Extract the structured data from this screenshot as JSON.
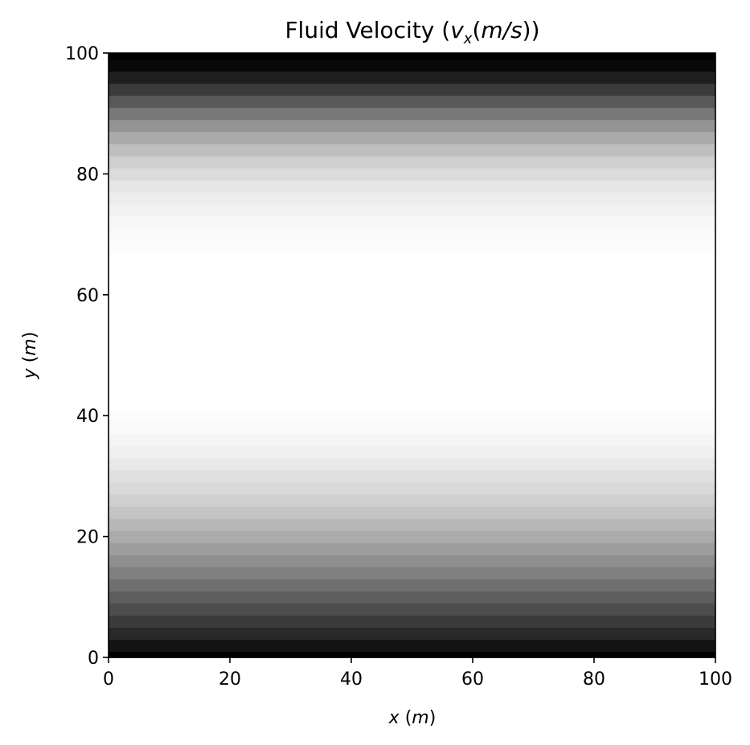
{
  "chart_data": {
    "type": "heatmap",
    "title": {
      "prefix": "Fluid Velocity (",
      "var": "v",
      "sub": "x",
      "open": "(",
      "unit": "m/s",
      "close": "))"
    },
    "xlabel": {
      "var": "x",
      "open": " (",
      "unit": "m",
      "close": ")"
    },
    "ylabel": {
      "var": "y",
      "open": " (",
      "unit": "m",
      "close": ")"
    },
    "xlim": [
      0,
      100
    ],
    "ylim": [
      0,
      100
    ],
    "xticks": [
      "0",
      "20",
      "40",
      "60",
      "80",
      "100"
    ],
    "yticks": [
      "0",
      "20",
      "40",
      "60",
      "80",
      "100"
    ],
    "colormap": "gray_r",
    "grid": false,
    "colors": {
      "min_value": "#ffffff",
      "max_value": "#000000"
    },
    "y_bands": [
      0,
      2,
      4,
      6,
      8,
      10,
      12,
      14,
      16,
      18,
      20,
      22,
      24,
      26,
      28,
      30,
      32,
      34,
      36,
      38,
      40,
      42,
      44,
      46,
      48,
      50,
      52,
      54,
      56,
      58,
      60,
      62,
      64,
      66,
      68,
      70,
      72,
      74,
      76,
      78,
      80,
      82,
      84,
      86,
      88,
      90,
      92,
      94,
      96,
      98,
      100
    ],
    "band_intensity": [
      1.0,
      0.92,
      0.84,
      0.77,
      0.7,
      0.63,
      0.56,
      0.5,
      0.44,
      0.38,
      0.33,
      0.28,
      0.23,
      0.19,
      0.15,
      0.12,
      0.09,
      0.06,
      0.04,
      0.02,
      0.01,
      0.0,
      0.0,
      0.0,
      0.0,
      0.0,
      0.0,
      0.0,
      0.0,
      0.0,
      0.0,
      0.0,
      0.0,
      0.0,
      0.01,
      0.02,
      0.03,
      0.05,
      0.07,
      0.1,
      0.14,
      0.19,
      0.25,
      0.33,
      0.42,
      0.53,
      0.65,
      0.77,
      0.88,
      0.97,
      1.0
    ]
  }
}
